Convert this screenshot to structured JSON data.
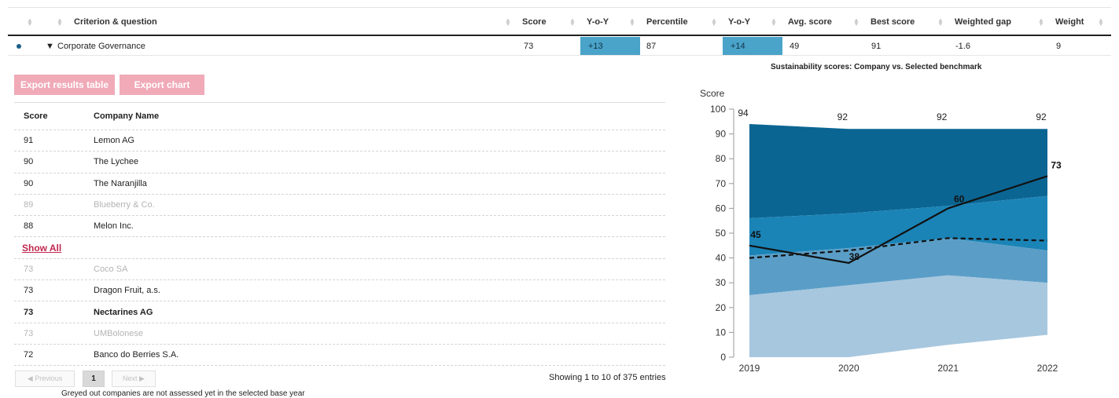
{
  "header": {
    "columns": [
      "Criterion & question",
      "Score",
      "Y-o-Y",
      "Percentile",
      "Y-o-Y",
      "Avg. score",
      "Best score",
      "Weighted gap",
      "Weight"
    ]
  },
  "criterion_row": {
    "name": "Corporate Governance",
    "toggle": "▼",
    "score": "73",
    "yoy_score": "+13",
    "percentile": "87",
    "yoy_percentile": "+14",
    "avg_score": "49",
    "best_score": "91",
    "weighted_gap": "-1.6",
    "weight": "9"
  },
  "buttons": {
    "export_table": "Export results table",
    "export_chart": "Export chart"
  },
  "results_table": {
    "headers": {
      "score": "Score",
      "company": "Company Name"
    },
    "top_rows": [
      {
        "score": "91",
        "name": "Lemon AG",
        "style": "normal"
      },
      {
        "score": "90",
        "name": "The Lychee",
        "style": "normal"
      },
      {
        "score": "90",
        "name": "The Naranjilla",
        "style": "normal"
      },
      {
        "score": "89",
        "name": "Blueberry & Co.",
        "style": "grey"
      },
      {
        "score": "88",
        "name": "Melon Inc.",
        "style": "normal"
      }
    ],
    "show_all": "Show All",
    "bottom_rows": [
      {
        "score": "73",
        "name": "Coco SA",
        "style": "grey"
      },
      {
        "score": "73",
        "name": "Dragon Fruit, a.s.",
        "style": "normal"
      },
      {
        "score": "73",
        "name": "Nectarines AG",
        "style": "bold"
      },
      {
        "score": "73",
        "name": "UMBolonese",
        "style": "grey"
      },
      {
        "score": "72",
        "name": "Banco do Berries S.A.",
        "style": "normal"
      }
    ]
  },
  "pagination": {
    "previous": "◀ Previous",
    "current_page": "1",
    "next": "Next ▶",
    "entries_text": "Showing 1 to 10 of 375 entries"
  },
  "footnote": "Greyed out companies are not assessed yet in the selected base year",
  "colors": {
    "band_top": "#0b6592",
    "band_upper_mid": "#1b84b7",
    "band_lower_mid": "#5a9ec7",
    "band_bottom": "#a7c7de",
    "highlight": "#4aa3c9",
    "button": "#f0aab8"
  },
  "chart_data": {
    "type": "area",
    "title": "Sustainability scores: Company vs. Selected benchmark",
    "ylabel": "Score",
    "xlabel": "",
    "x": [
      "2019",
      "2020",
      "2021",
      "2022"
    ],
    "ylim": [
      0,
      100
    ],
    "yticks": [
      0,
      10,
      20,
      30,
      40,
      50,
      60,
      70,
      80,
      90,
      100
    ],
    "bands": [
      {
        "lower": [
          56,
          58,
          61,
          65
        ],
        "upper": [
          94,
          92,
          92,
          92
        ]
      },
      {
        "lower": [
          41,
          44,
          48,
          43
        ],
        "upper": [
          56,
          58,
          61,
          65
        ]
      },
      {
        "lower": [
          25,
          29,
          33,
          30
        ],
        "upper": [
          41,
          44,
          48,
          43
        ]
      },
      {
        "lower": [
          0,
          0,
          5,
          9
        ],
        "upper": [
          25,
          29,
          33,
          30
        ]
      }
    ],
    "series": [
      {
        "style": "solid",
        "values": [
          45,
          38,
          60,
          73
        ]
      },
      {
        "style": "dashed",
        "values": [
          40,
          43,
          48,
          47
        ]
      }
    ],
    "labels": {
      "max": [
        94,
        92,
        92,
        92
      ],
      "min": [
        null,
        null,
        5,
        9
      ],
      "company": [
        45,
        38,
        60,
        73
      ]
    }
  }
}
